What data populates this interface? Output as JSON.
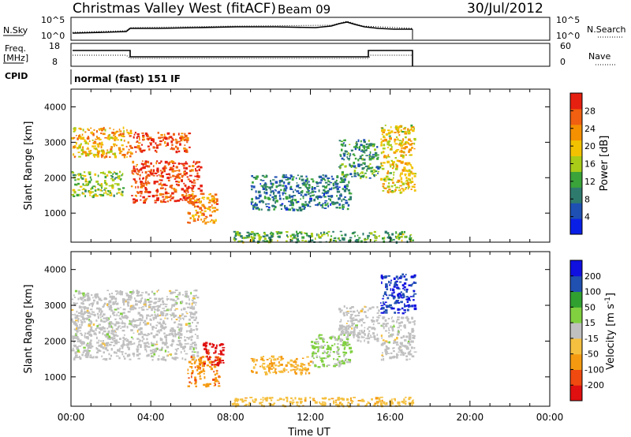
{
  "header": {
    "title": "Christmas Valley West (fitACF)",
    "beam": "Beam 09",
    "date": "30/Jul/2012"
  },
  "noise_panel": {
    "left_label": "N.Sky",
    "right_label": "N.Search",
    "left_ticks": [
      "10^5",
      "10^0"
    ],
    "right_ticks": [
      "10^5",
      "10^0"
    ]
  },
  "freq_panel": {
    "left_label_1": "Freq.",
    "left_label_2": "[MHz]",
    "right_label": "Nave",
    "left_ticks": [
      "18",
      "8"
    ],
    "right_ticks": [
      "60",
      "0"
    ]
  },
  "cpid": {
    "label": "CPID",
    "text": "normal (fast) 151 IF"
  },
  "colors": {
    "power_scale": [
      "#0a1fe6",
      "#1e50b4",
      "#2e7b6e",
      "#3aa33a",
      "#a8cc18",
      "#f2c200",
      "#f59000",
      "#f06010",
      "#e62010"
    ],
    "velocity_scale": [
      "#e01010",
      "#f04a10",
      "#f59a10",
      "#f5c040",
      "#c0c0c0",
      "#80d040",
      "#30a030",
      "#2050b0",
      "#1010e0"
    ]
  },
  "chart_data": [
    {
      "type": "heatmap",
      "title": "",
      "ylabel": "Slant Range [km]",
      "xlabel": "",
      "xlim": [
        0,
        24
      ],
      "ylim": [
        180,
        4500
      ],
      "yticks": [
        1000,
        2000,
        3000,
        4000
      ],
      "colorbar": {
        "label": "Power [dB]",
        "ticks": [
          "4",
          "8",
          "12",
          "16",
          "20",
          "24",
          "28"
        ],
        "range": [
          0,
          30
        ]
      },
      "regions": [
        {
          "t0": 0.0,
          "t1": 3.0,
          "r0": 2600,
          "r1": 3450,
          "value": 20
        },
        {
          "t0": 0.0,
          "t1": 2.6,
          "r0": 1500,
          "r1": 2200,
          "value": 14
        },
        {
          "t0": 3.1,
          "t1": 5.9,
          "r0": 2750,
          "r1": 3300,
          "value": 26
        },
        {
          "t0": 3.0,
          "t1": 6.5,
          "r0": 1300,
          "r1": 2500,
          "value": 27
        },
        {
          "t0": 5.8,
          "t1": 7.3,
          "r0": 750,
          "r1": 1600,
          "value": 22
        },
        {
          "t0": 8.0,
          "t1": 17.2,
          "r0": 200,
          "r1": 500,
          "value": 12
        },
        {
          "t0": 9.0,
          "t1": 14.0,
          "r0": 1100,
          "r1": 2100,
          "value": 8
        },
        {
          "t0": 13.4,
          "t1": 15.4,
          "r0": 2000,
          "r1": 3100,
          "value": 10
        },
        {
          "t0": 15.5,
          "t1": 17.2,
          "r0": 1600,
          "r1": 3500,
          "value": 18
        }
      ]
    },
    {
      "type": "heatmap",
      "title": "",
      "ylabel": "Slant Range [km]",
      "xlabel": "Time UT",
      "xlim": [
        0,
        24
      ],
      "ylim": [
        180,
        4500
      ],
      "xticks": [
        "00:00",
        "04:00",
        "08:00",
        "12:00",
        "16:00",
        "20:00",
        "00:00"
      ],
      "yticks": [
        1000,
        2000,
        3000,
        4000
      ],
      "colorbar": {
        "label": "Velocity [m s^-1]",
        "ticks": [
          "200",
          "100",
          "50",
          "15",
          "-15",
          "-50",
          "-100",
          "-200"
        ],
        "range": [
          -250,
          250
        ]
      },
      "regions": [
        {
          "t0": 0.0,
          "t1": 6.3,
          "r0": 1500,
          "r1": 3450,
          "value": 0
        },
        {
          "t0": 5.8,
          "t1": 7.4,
          "r0": 750,
          "r1": 1600,
          "value": -120
        },
        {
          "t0": 6.6,
          "t1": 7.6,
          "r0": 1350,
          "r1": 2000,
          "value": -220
        },
        {
          "t0": 8.0,
          "t1": 17.2,
          "r0": 200,
          "r1": 450,
          "value": -60
        },
        {
          "t0": 9.0,
          "t1": 12.0,
          "r0": 1100,
          "r1": 1600,
          "value": -80
        },
        {
          "t0": 12.0,
          "t1": 14.0,
          "r0": 1300,
          "r1": 2200,
          "value": 40
        },
        {
          "t0": 13.4,
          "t1": 15.4,
          "r0": 2000,
          "r1": 3000,
          "value": 0
        },
        {
          "t0": 15.5,
          "t1": 17.2,
          "r0": 2800,
          "r1": 3900,
          "value": 200
        },
        {
          "t0": 15.5,
          "t1": 17.2,
          "r0": 1500,
          "r1": 2700,
          "value": 0
        }
      ]
    }
  ]
}
